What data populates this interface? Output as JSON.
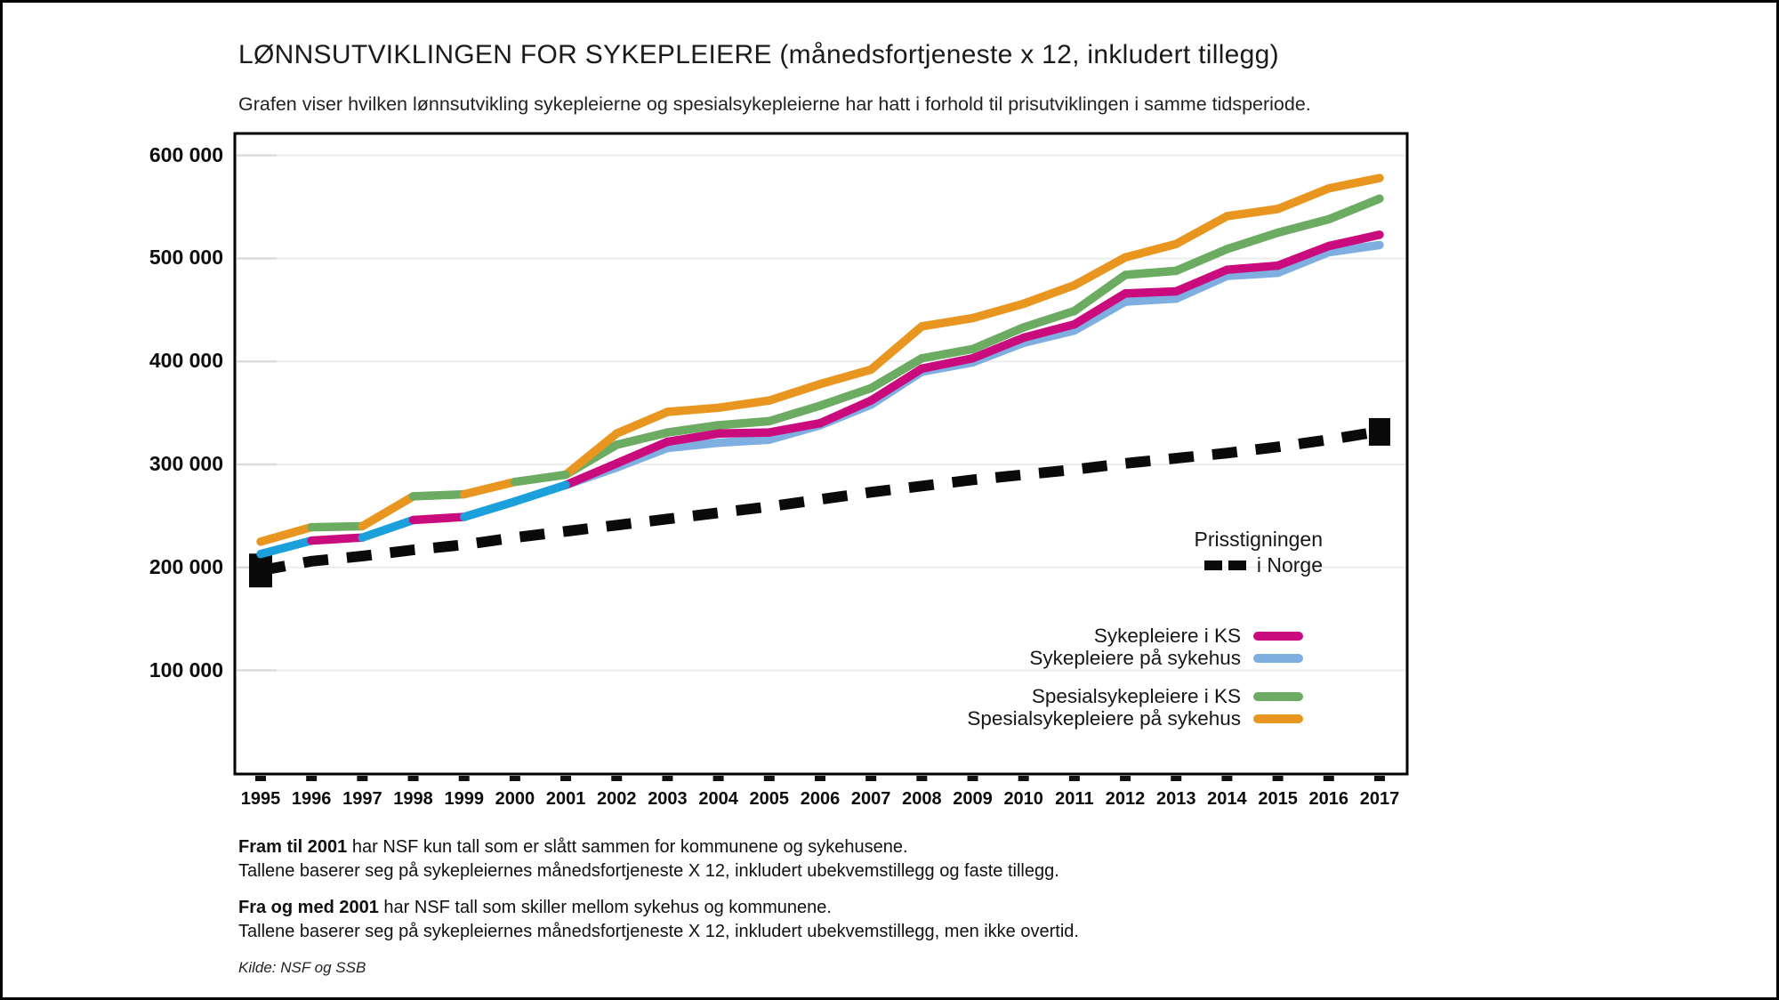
{
  "header": {
    "title": "LØNNSUTVIKLINGEN FOR SYKEPLEIERE (månedsfortjeneste x 12, inkludert tillegg)",
    "subtitle": "Grafen viser hvilken lønnsutvikling sykepleierne og spesialsykepleierne har hatt i forhold til prisutviklingen i samme tidsperiode."
  },
  "legend": {
    "price": {
      "line1": "Prisstigningen",
      "line2": "i Norge",
      "swatch_color": "#0A0A0A"
    },
    "items": [
      {
        "label": "Sykepleiere i KS",
        "color": "#C90B7D"
      },
      {
        "label": "Sykepleiere på sykehus",
        "color": "#7FAEE1"
      },
      {
        "label": "Spesialsykepleiere i KS",
        "color": "#6CAB62"
      },
      {
        "label": "Spesialsykepleiere på sykehus",
        "color": "#E89620"
      }
    ]
  },
  "footnotes": [
    {
      "bold": "Fram til 2001",
      "rest": " har NSF kun tall som er slått sammen for kommunene og sykehusene."
    },
    {
      "bold": "",
      "rest": "Tallene baserer seg på sykepleiernes månedsfortjeneste X 12, inkludert ubekvemstillegg og faste tillegg."
    },
    {
      "bold": "Fra og med 2001",
      "rest": " har NSF tall som skiller mellom sykehus og kommunene."
    },
    {
      "bold": "",
      "rest": "Tallene baserer seg på sykepleiernes månedsfortjeneste X 12, inkludert ubekvemstillegg, men ikke overtid."
    }
  ],
  "source": "Kilde: NSF og SSB",
  "chart_data": {
    "type": "line",
    "title": "LØNNSUTVIKLINGEN FOR SYKEPLEIERE (månedsfortjeneste x 12, inkludert tillegg)",
    "xlabel": "",
    "ylabel": "",
    "ylim": [
      0,
      622000
    ],
    "grid": "horizontal-light",
    "legend_position": "inside-right",
    "x": [
      1995,
      1996,
      1997,
      1998,
      1999,
      2000,
      2001,
      2002,
      2003,
      2004,
      2005,
      2006,
      2007,
      2008,
      2009,
      2010,
      2011,
      2012,
      2013,
      2014,
      2015,
      2016,
      2017
    ],
    "y_axis": {
      "ticks": [
        {
          "value": 600000,
          "label": "600 000"
        },
        {
          "value": 500000,
          "label": "500 000"
        },
        {
          "value": 400000,
          "label": "400 000"
        },
        {
          "value": 300000,
          "label": "300 000"
        },
        {
          "value": 200000,
          "label": "200 000"
        },
        {
          "value": 100000,
          "label": "100 000"
        }
      ]
    },
    "series": [
      {
        "name": "Prisstigningen i Norge",
        "color": "#0A0A0A",
        "dash": true,
        "values": [
          197000,
          206000,
          211000,
          217000,
          222000,
          229000,
          235000,
          241000,
          247000,
          253000,
          259000,
          266000,
          273000,
          279000,
          285000,
          290000,
          295000,
          301000,
          306000,
          311000,
          317000,
          324000,
          332000
        ]
      },
      {
        "name": "Spesialsykepleiere i KS (fra 2001)",
        "color": "#6CAB62",
        "values": [
          null,
          null,
          null,
          null,
          null,
          null,
          290000,
          319000,
          331000,
          338000,
          342000,
          357000,
          374000,
          403000,
          412000,
          433000,
          449000,
          484000,
          488000,
          509000,
          525000,
          538000,
          558000
        ]
      },
      {
        "name": "Spesialsykepleiere på sykehus (fra 2001)",
        "color": "#E89620",
        "values": [
          null,
          null,
          null,
          null,
          null,
          null,
          290000,
          330000,
          351000,
          355000,
          362000,
          378000,
          392000,
          434000,
          442000,
          456000,
          474000,
          501000,
          514000,
          541000,
          548000,
          568000,
          578000
        ]
      },
      {
        "name": "Sykepleiere på sykehus (fra 2001)",
        "color": "#7FAEE1",
        "values": [
          null,
          null,
          null,
          null,
          null,
          null,
          280000,
          297000,
          316000,
          321000,
          324000,
          338000,
          358000,
          390000,
          399000,
          418000,
          430000,
          458000,
          461000,
          483000,
          486000,
          506000,
          513000
        ]
      },
      {
        "name": "Sykepleiere i KS (fra 2001)",
        "color": "#C90B7D",
        "values": [
          null,
          null,
          null,
          null,
          null,
          null,
          280000,
          301000,
          322000,
          330000,
          331000,
          340000,
          362000,
          393000,
          403000,
          423000,
          436000,
          466000,
          468000,
          489000,
          493000,
          512000,
          523000
        ]
      },
      {
        "name": "Spesialsykepleiere 1995–2001 (samlet for kommuner og sykehus)",
        "color": "#E89620",
        "color_segments": [
          {
            "from": 1996,
            "to": 1997,
            "color": "#6CAB62"
          },
          {
            "from": 1998,
            "to": 1999,
            "color": "#6CAB62"
          },
          {
            "from": 2000,
            "to": 2001,
            "color": "#6CAB62"
          }
        ],
        "values": [
          225000,
          239000,
          240000,
          269000,
          271000,
          283000,
          290000,
          null,
          null,
          null,
          null,
          null,
          null,
          null,
          null,
          null,
          null,
          null,
          null,
          null,
          null,
          null,
          null
        ]
      },
      {
        "name": "Sykepleiere 1995–2001 (samlet for kommuner og sykehus)",
        "color": "#1BA0DC",
        "color_segments": [
          {
            "from": 1996,
            "to": 1997,
            "color": "#C90B7D"
          },
          {
            "from": 1998,
            "to": 1999,
            "color": "#C90B7D"
          }
        ],
        "values": [
          213000,
          226000,
          229000,
          246000,
          249000,
          264000,
          280000,
          null,
          null,
          null,
          null,
          null,
          null,
          null,
          null,
          null,
          null,
          null,
          null,
          null,
          null,
          null,
          null
        ]
      }
    ]
  }
}
